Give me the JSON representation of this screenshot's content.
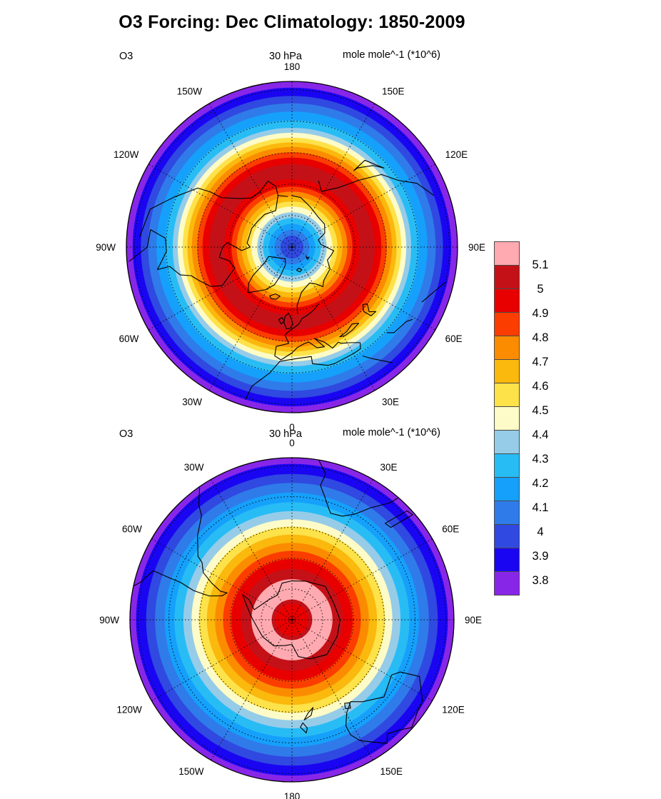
{
  "title": "O3 Forcing: Dec Climatology: 1850-2009",
  "colorbar": {
    "tick_labels_top_to_bottom": [
      "5.1",
      "5",
      "4.9",
      "4.8",
      "4.7",
      "4.6",
      "4.5",
      "4.4",
      "4.3",
      "4.2",
      "4.1",
      "4",
      "3.9",
      "3.8"
    ]
  },
  "chart_data": {
    "type": "heatmap",
    "variant": "polar_stereographic_filled_contour_pair",
    "title": "O3 Forcing: Dec Climatology: 1850-2009",
    "variable": "O3",
    "level": "30 hPa",
    "units": "mole mole^-1 (*10^6)",
    "contour_levels": [
      3.8,
      3.9,
      4.0,
      4.1,
      4.2,
      4.3,
      4.4,
      4.5,
      4.6,
      4.7,
      4.8,
      4.9,
      5.0,
      5.1
    ],
    "palette_top_to_bottom": [
      "#ffaab0",
      "#c41118",
      "#e80000",
      "#fc3d00",
      "#fb8c00",
      "#fbb80d",
      "#fde24a",
      "#fdfbc8",
      "#96cce8",
      "#28bcf5",
      "#15a0fb",
      "#2f7bea",
      "#3049e0",
      "#1a05f2",
      "#8826e8"
    ],
    "palette_value_bands_top_to_bottom": [
      ">5.1",
      "5.0-5.1",
      "4.9-5.0",
      "4.8-4.9",
      "4.7-4.8",
      "4.6-4.7",
      "4.5-4.6",
      "4.4-4.5",
      "4.3-4.4",
      "4.2-4.3",
      "4.1-4.2",
      "4.0-4.1",
      "3.9-4.0",
      "3.8-3.9",
      "<3.8"
    ],
    "colorbar_tick_labels_top_to_bottom": [
      "5.1",
      "5",
      "4.9",
      "4.8",
      "4.7",
      "4.6",
      "4.5",
      "4.4",
      "4.3",
      "4.2",
      "4.1",
      "4",
      "3.9",
      "3.8"
    ],
    "graticule_circle_fractions": [
      0.19,
      0.38,
      0.57,
      0.76,
      0.95
    ],
    "meridian_spacing_degrees": 30,
    "legend_position": "right",
    "panels": [
      {
        "hemisphere": "north",
        "field_label": "O3",
        "level_label": "30 hPa",
        "units_label": "mole mole^-1 (*10^6)",
        "pole_value_band": "3.9-4.0",
        "maximum": "annular ring of 5.0-5.1 values at mid-high latitudes",
        "rim_value_band": "<3.8",
        "longitude_labels_clockwise_from_top": [
          "180",
          "150E",
          "120E",
          "90E",
          "60E",
          "30E",
          "0",
          "30W",
          "60W",
          "90W",
          "120W",
          "150W"
        ],
        "rings_center_to_rim": [
          {
            "to": 0.07,
            "color": 12
          },
          {
            "to": 0.105,
            "color": 11
          },
          {
            "to": 0.14,
            "color": 10
          },
          {
            "to": 0.175,
            "color": 9
          },
          {
            "to": 0.21,
            "color": 8
          },
          {
            "to": 0.245,
            "color": 7
          },
          {
            "to": 0.275,
            "color": 6
          },
          {
            "to": 0.305,
            "color": 5
          },
          {
            "to": 0.335,
            "color": 4
          },
          {
            "to": 0.365,
            "color": 3
          },
          {
            "to": 0.41,
            "color": 2
          },
          {
            "to": 0.5,
            "color": 1
          },
          {
            "to": 0.54,
            "color": 2
          },
          {
            "to": 0.572,
            "color": 3
          },
          {
            "to": 0.604,
            "color": 4
          },
          {
            "to": 0.632,
            "color": 5
          },
          {
            "to": 0.66,
            "color": 6
          },
          {
            "to": 0.69,
            "color": 7
          },
          {
            "to": 0.72,
            "color": 8
          },
          {
            "to": 0.765,
            "color": 9
          },
          {
            "to": 0.818,
            "color": 10
          },
          {
            "to": 0.868,
            "color": 11
          },
          {
            "to": 0.912,
            "color": 12
          },
          {
            "to": 0.962,
            "color": 13
          },
          {
            "to": 1.0,
            "color": 14
          }
        ]
      },
      {
        "hemisphere": "south",
        "field_label": "O3",
        "level_label": "30 hPa",
        "units_label": "mole mole^-1 (*10^6)",
        "pole_value_band": "4.9-5.0",
        "maximum": "wide ring of >5.1 values around the pole",
        "rim_value_band": "<3.8",
        "longitude_labels_clockwise_from_top": [
          "0",
          "30E",
          "60E",
          "90E",
          "120E",
          "150E",
          "180",
          "150W",
          "120W",
          "90W",
          "60W",
          "30W"
        ],
        "rings_center_to_rim": [
          {
            "to": 0.1,
            "color": 2
          },
          {
            "to": 0.125,
            "color": 1
          },
          {
            "to": 0.25,
            "color": 0
          },
          {
            "to": 0.315,
            "color": 1
          },
          {
            "to": 0.375,
            "color": 2
          },
          {
            "to": 0.425,
            "color": 3
          },
          {
            "to": 0.475,
            "color": 4
          },
          {
            "to": 0.525,
            "color": 5
          },
          {
            "to": 0.575,
            "color": 6
          },
          {
            "to": 0.62,
            "color": 7
          },
          {
            "to": 0.67,
            "color": 8
          },
          {
            "to": 0.725,
            "color": 9
          },
          {
            "to": 0.785,
            "color": 10
          },
          {
            "to": 0.845,
            "color": 11
          },
          {
            "to": 0.9,
            "color": 12
          },
          {
            "to": 0.962,
            "color": 13
          },
          {
            "to": 1.0,
            "color": 14
          }
        ]
      }
    ]
  }
}
